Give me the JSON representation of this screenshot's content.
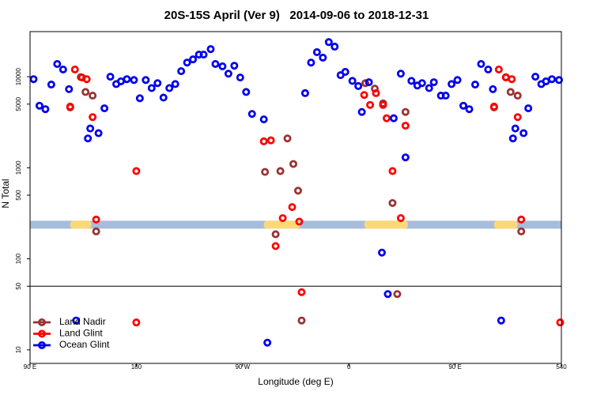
{
  "chart_data": {
    "type": "scatter",
    "title": "20S-15S April (Ver 9)   2014-09-06 to 2018-12-31",
    "x_label": "Longitude (deg E)",
    "y_label": "N Total",
    "log_y": true,
    "xlim": [
      90,
      540
    ],
    "xticks": [
      {
        "value": 90,
        "label": "90 E"
      },
      180,
      {
        "value": 270,
        "label": "90 W"
      },
      {
        "value": 360,
        "label": "0"
      },
      {
        "value": 450,
        "label": "90 E"
      },
      540
    ],
    "ylim": [
      7.1,
      31300
    ],
    "yticks": [
      10,
      50,
      100,
      500,
      1000,
      5000,
      10000
    ],
    "reference_line": 50,
    "band": {
      "value": 237,
      "color": "#a6bddb",
      "highlight_color": "#fdd878",
      "highlights": [
        [
          124,
          142
        ],
        [
          288,
          319
        ],
        [
          373,
          410
        ],
        [
          483,
          503
        ]
      ]
    },
    "legend": "bottom-left",
    "series": [
      {
        "name": "Land Nadir",
        "color": "#993333",
        "x": [
          124,
          133,
          137,
          143,
          146,
          289,
          298,
          302,
          308,
          313,
          317,
          320,
          374,
          382,
          389,
          397,
          401,
          408,
          483,
          493,
          497,
          503,
          506
        ],
        "values": [
          4600,
          9900,
          6800,
          6200,
          200,
          900,
          186,
          920,
          2100,
          1100,
          560,
          21,
          8500,
          7400,
          5100,
          410,
          41,
          4100,
          4600,
          9900,
          6800,
          6200,
          200
        ]
      },
      {
        "name": "Land Glint",
        "color": "#ff0000",
        "x": [
          124,
          128,
          134,
          138,
          143,
          146,
          180,
          180,
          288,
          294,
          298,
          304,
          312,
          318,
          320,
          373,
          378,
          383,
          389,
          392,
          397,
          404,
          408,
          483,
          487,
          493,
          498,
          503,
          506,
          539
        ],
        "values": [
          4700,
          12000,
          9800,
          9400,
          3600,
          270,
          920,
          20,
          1950,
          2000,
          138,
          280,
          370,
          256,
          43,
          6300,
          4900,
          6600,
          4900,
          3500,
          920,
          280,
          2900,
          4700,
          12000,
          9800,
          9400,
          3600,
          270,
          20
        ]
      },
      {
        "name": "Ocean Glint",
        "color": "#0000ee",
        "x": [
          93,
          98,
          103,
          108,
          113,
          118,
          123,
          129,
          139,
          141,
          148,
          153,
          158,
          163,
          167,
          172,
          178,
          183,
          188,
          193,
          198,
          203,
          208,
          213,
          218,
          223,
          228,
          233,
          237,
          243,
          247,
          253,
          258,
          263,
          268,
          273,
          278,
          288,
          291,
          323,
          328,
          333,
          338,
          343,
          348,
          353,
          357,
          363,
          368,
          371,
          377,
          388,
          393,
          398,
          404,
          408,
          413,
          418,
          422,
          428,
          432,
          438,
          442,
          447,
          452,
          457,
          462,
          467,
          472,
          478,
          482,
          489,
          499,
          501,
          508,
          512,
          518,
          523,
          527,
          532,
          538
        ],
        "values": [
          9400,
          4800,
          4400,
          8200,
          13800,
          12000,
          7300,
          21,
          2100,
          2700,
          2400,
          4500,
          10000,
          8300,
          8900,
          9400,
          9200,
          5800,
          9200,
          7500,
          8500,
          5900,
          7500,
          8300,
          11500,
          14300,
          15500,
          17500,
          17500,
          20100,
          13800,
          13000,
          10800,
          13200,
          9800,
          6800,
          3900,
          3400,
          12,
          6600,
          14300,
          18600,
          16200,
          24000,
          21400,
          10400,
          11300,
          9000,
          7900,
          4100,
          8700,
          117,
          41,
          3500,
          10800,
          1300,
          9000,
          8000,
          8500,
          7500,
          8700,
          6200,
          6200,
          8300,
          9200,
          4800,
          4400,
          8200,
          13800,
          12000,
          7300,
          21,
          2100,
          2700,
          2400,
          4500,
          10000,
          8300,
          8900,
          9400,
          9200
        ]
      }
    ]
  }
}
